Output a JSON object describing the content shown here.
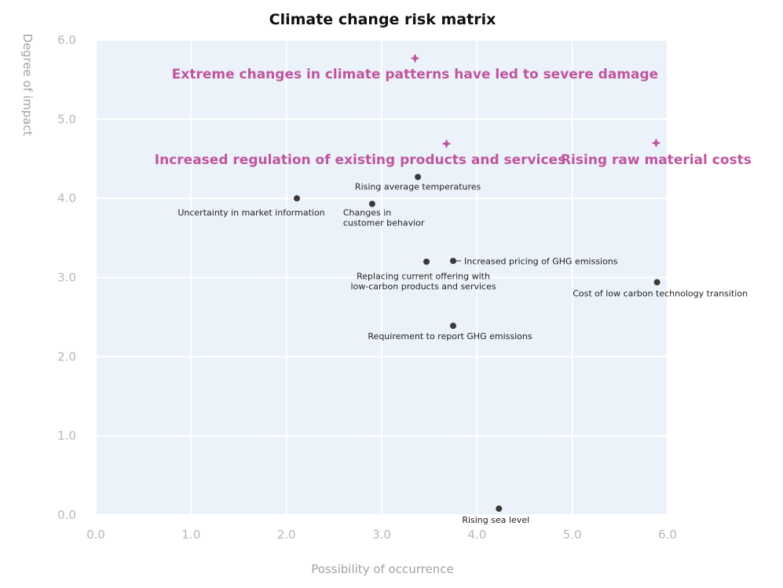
{
  "chart_data": {
    "type": "scatter",
    "title": "Climate change risk matrix",
    "xlabel": "Possibility of occurrence",
    "ylabel": "Degree of impact",
    "xlim": [
      0,
      6
    ],
    "ylim": [
      0,
      6
    ],
    "x_ticks": [
      "0.0",
      "1.0",
      "2.0",
      "3.0",
      "4.0",
      "5.0",
      "6.0"
    ],
    "y_ticks": [
      "0.0",
      "1.0",
      "2.0",
      "3.0",
      "4.0",
      "5.0",
      "6.0"
    ],
    "grid": true,
    "colors": {
      "plot_background": "#ebf2f9",
      "grid": "#ffffff",
      "point": "#3a3a3a",
      "highlight": "#c0549e"
    },
    "points": [
      {
        "label_lines": [
          "Rising average temperatures"
        ],
        "x": 3.38,
        "y": 4.27
      },
      {
        "label_lines": [
          "Uncertainty in market information"
        ],
        "x": 2.11,
        "y": 4.0
      },
      {
        "label_lines": [
          "Changes in",
          "customer behavior"
        ],
        "x": 2.9,
        "y": 3.93
      },
      {
        "label_lines": [
          "Replacing current offering with",
          "low-carbon products and services"
        ],
        "x": 3.47,
        "y": 3.2
      },
      {
        "label_lines": [
          "Increased pricing of GHG emissions"
        ],
        "x": 3.75,
        "y": 3.21
      },
      {
        "label_lines": [
          "Cost of low carbon technology transition"
        ],
        "x": 5.89,
        "y": 2.94
      },
      {
        "label_lines": [
          "Requirement to report GHG emissions"
        ],
        "x": 3.75,
        "y": 2.39
      },
      {
        "label_lines": [
          "Rising sea level"
        ],
        "x": 4.23,
        "y": 0.08
      }
    ],
    "highlights": [
      {
        "label": "Extreme changes in climate patterns have led to severe damage",
        "x": 3.35,
        "y": 5.77
      },
      {
        "label": "Increased regulation of existing products and services",
        "x": 3.68,
        "y": 4.69
      },
      {
        "label": "Rising raw material costs",
        "x": 5.88,
        "y": 4.7
      }
    ]
  }
}
